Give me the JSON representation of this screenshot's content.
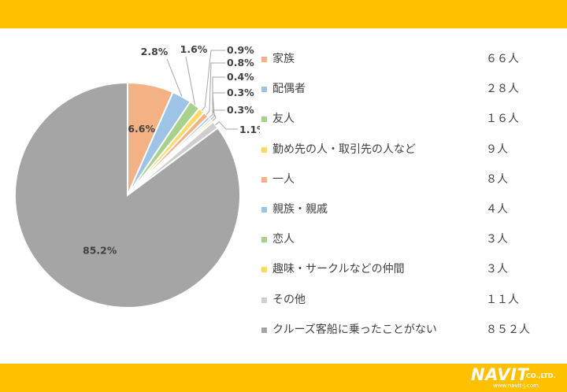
{
  "colors": {
    "band": "#ffc000",
    "orange": "#f4b183",
    "blue": "#9dc3e6",
    "green": "#a9d18e",
    "yellow": "#ffd966",
    "gray_light": "#d0cece",
    "gray": "#a5a5a5",
    "text": "#404040"
  },
  "logo": {
    "name": "NAVIT",
    "suffix": "CO.,LTD.",
    "url": "www.navit-j.com"
  },
  "chart_data": {
    "type": "pie",
    "start_angle_deg": 0,
    "slices": [
      {
        "label": "家族",
        "count": "６６人",
        "value": 66,
        "percent": "6.6%",
        "color": "#f4b183"
      },
      {
        "label": "配偶者",
        "count": "２８人",
        "value": 28,
        "percent": "2.8%",
        "color": "#9dc3e6"
      },
      {
        "label": "友人",
        "count": "１６人",
        "value": 16,
        "percent": "1.6%",
        "color": "#a9d18e"
      },
      {
        "label": "勤め先の人・取引先の人など",
        "count": "９人",
        "value": 9,
        "percent": "0.9%",
        "color": "#ffd966"
      },
      {
        "label": "一人",
        "count": "８人",
        "value": 8,
        "percent": "0.8%",
        "color": "#f4b183"
      },
      {
        "label": "親族・親戚",
        "count": "４人",
        "value": 4,
        "percent": "0.4%",
        "color": "#9dc3e6"
      },
      {
        "label": "恋人",
        "count": "３人",
        "value": 3,
        "percent": "0.3%",
        "color": "#a9d18e"
      },
      {
        "label": "趣味・サークルなどの仲間",
        "count": "３人",
        "value": 3,
        "percent": "0.3%",
        "color": "#ffd966"
      },
      {
        "label": "その他",
        "count": "１１人",
        "value": 11,
        "percent": "1.1%",
        "color": "#d0cece"
      },
      {
        "label": "クルーズ客船に乗ったことがない",
        "count": "８５２人",
        "value": 852,
        "percent": "85.2%",
        "color": "#a5a5a5"
      }
    ]
  }
}
